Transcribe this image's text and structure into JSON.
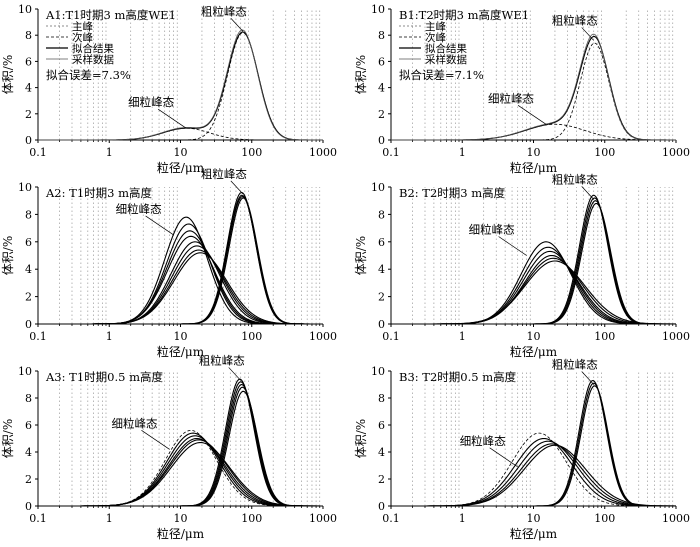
{
  "figure": {
    "x_ticks": [
      "0.1",
      "1",
      "10",
      "100",
      "1000"
    ],
    "y_ticks": [
      "0",
      "2",
      "4",
      "6",
      "8",
      "10"
    ]
  },
  "chart_data": [
    {
      "id": "A1",
      "type": "line",
      "x_scale": "log",
      "title": "A1:T1时期3 m高度WE1",
      "xlabel": "粒径/μm",
      "ylabel": "体积/%",
      "xlim": [
        0.1,
        1000
      ],
      "ylim": [
        0,
        10
      ],
      "grid": "vertical dotted",
      "legend": [
        "主峰",
        "次峰",
        "拟合结果",
        "采样数据"
      ],
      "legend_position": "top-left",
      "fit_error": "拟合误差=7.3%",
      "annotations": [
        {
          "text": "粗粒峰态",
          "x": 75,
          "y": 8.3
        },
        {
          "text": "细粒峰态",
          "x": 12,
          "y": 0.9
        }
      ],
      "series": [
        {
          "name": "主峰",
          "style": "dashed",
          "components": [
            {
              "mu": 75,
              "sigma": 0.215,
              "amp": 8.2
            }
          ]
        },
        {
          "name": "次峰",
          "style": "dashed",
          "components": [
            {
              "mu": 12,
              "sigma": 0.33,
              "amp": 0.9
            }
          ]
        },
        {
          "name": "拟合结果",
          "style": "solid",
          "components": [
            {
              "mu": 75,
              "sigma": 0.215,
              "amp": 8.2
            },
            {
              "mu": 12,
              "sigma": 0.33,
              "amp": 0.9
            }
          ]
        },
        {
          "name": "采样数据",
          "style": "thin",
          "components": [
            {
              "mu": 74,
              "sigma": 0.213,
              "amp": 8.35
            },
            {
              "mu": 12,
              "sigma": 0.33,
              "amp": 0.95
            }
          ]
        }
      ]
    },
    {
      "id": "B1",
      "type": "line",
      "x_scale": "log",
      "title": "B1:T2时期3 m高度WE1",
      "xlabel": "粒径/μm",
      "ylabel": "体积/%",
      "xlim": [
        0.1,
        1000
      ],
      "ylim": [
        0,
        10
      ],
      "grid": "vertical dotted",
      "legend": [
        "主峰",
        "次峰",
        "拟合结果",
        "采样数据"
      ],
      "legend_position": "top-left",
      "fit_error": "拟合误差=7.1%",
      "annotations": [
        {
          "text": "粗粒峰态",
          "x": 70,
          "y": 7.6
        },
        {
          "text": "细粒峰态",
          "x": 15,
          "y": 1.2
        }
      ],
      "series": [
        {
          "name": "主峰",
          "style": "dashed",
          "components": [
            {
              "mu": 72,
              "sigma": 0.2,
              "amp": 7.4
            }
          ]
        },
        {
          "name": "次峰",
          "style": "dashed",
          "components": [
            {
              "mu": 20,
              "sigma": 0.42,
              "amp": 1.2
            }
          ]
        },
        {
          "name": "拟合结果",
          "style": "solid",
          "components": [
            {
              "mu": 72,
              "sigma": 0.2,
              "amp": 7.4
            },
            {
              "mu": 20,
              "sigma": 0.42,
              "amp": 1.2
            }
          ]
        },
        {
          "name": "采样数据",
          "style": "thin",
          "components": [
            {
              "mu": 71,
              "sigma": 0.198,
              "amp": 7.55
            },
            {
              "mu": 20,
              "sigma": 0.42,
              "amp": 1.25
            }
          ]
        }
      ]
    },
    {
      "id": "A2",
      "type": "line",
      "x_scale": "log",
      "title": "A2: T1时期3 m高度",
      "xlabel": "粒径/μm",
      "ylabel": "体积/%",
      "xlim": [
        0.1,
        1000
      ],
      "ylim": [
        0,
        10
      ],
      "grid": "vertical dotted",
      "annotations": [
        {
          "text": "粗粒峰态",
          "x": 75,
          "y": 9.5
        },
        {
          "text": "细粒峰态",
          "x": 8,
          "y": 6.5
        }
      ],
      "series": [
        {
          "style": "solid",
          "components": [
            {
              "mu": 72,
              "sigma": 0.2,
              "amp": 9.6
            }
          ]
        },
        {
          "style": "solid",
          "components": [
            {
              "mu": 73,
              "sigma": 0.2,
              "amp": 9.4
            }
          ]
        },
        {
          "style": "solid",
          "components": [
            {
              "mu": 74,
              "sigma": 0.2,
              "amp": 9.3
            }
          ]
        },
        {
          "style": "solid",
          "components": [
            {
              "mu": 76,
              "sigma": 0.2,
              "amp": 9.2
            }
          ]
        },
        {
          "style": "solid",
          "components": [
            {
              "mu": 12,
              "sigma": 0.3,
              "amp": 7.8
            }
          ]
        },
        {
          "style": "solid",
          "components": [
            {
              "mu": 13,
              "sigma": 0.31,
              "amp": 7.3
            }
          ]
        },
        {
          "style": "solid",
          "components": [
            {
              "mu": 13.5,
              "sigma": 0.32,
              "amp": 6.8
            }
          ]
        },
        {
          "style": "solid",
          "components": [
            {
              "mu": 14,
              "sigma": 0.33,
              "amp": 6.4
            }
          ]
        },
        {
          "style": "solid",
          "components": [
            {
              "mu": 16,
              "sigma": 0.34,
              "amp": 6.0
            }
          ]
        },
        {
          "style": "solid",
          "components": [
            {
              "mu": 17,
              "sigma": 0.35,
              "amp": 5.7
            }
          ]
        },
        {
          "style": "solid",
          "components": [
            {
              "mu": 18,
              "sigma": 0.36,
              "amp": 5.4
            }
          ]
        },
        {
          "style": "solid",
          "components": [
            {
              "mu": 19,
              "sigma": 0.37,
              "amp": 5.2
            }
          ]
        }
      ]
    },
    {
      "id": "B2",
      "type": "line",
      "x_scale": "log",
      "title": "B2: T2时期3 m高度",
      "xlabel": "粒径/μm",
      "ylabel": "体积/%",
      "xlim": [
        0.1,
        1000
      ],
      "ylim": [
        0,
        10
      ],
      "grid": "vertical dotted",
      "annotations": [
        {
          "text": "粗粒峰态",
          "x": 70,
          "y": 9.1
        },
        {
          "text": "细粒峰态",
          "x": 8,
          "y": 5.0
        }
      ],
      "series": [
        {
          "style": "solid",
          "components": [
            {
              "mu": 70,
              "sigma": 0.2,
              "amp": 9.4
            }
          ]
        },
        {
          "style": "solid",
          "components": [
            {
              "mu": 72,
              "sigma": 0.2,
              "amp": 9.2
            }
          ]
        },
        {
          "style": "solid",
          "components": [
            {
              "mu": 74,
              "sigma": 0.2,
              "amp": 9.0
            }
          ]
        },
        {
          "style": "solid",
          "components": [
            {
              "mu": 76,
              "sigma": 0.2,
              "amp": 8.8
            }
          ]
        },
        {
          "style": "solid",
          "components": [
            {
              "mu": 15,
              "sigma": 0.35,
              "amp": 6.0
            }
          ]
        },
        {
          "style": "solid",
          "components": [
            {
              "mu": 16,
              "sigma": 0.36,
              "amp": 5.6
            }
          ]
        },
        {
          "style": "solid",
          "components": [
            {
              "mu": 17,
              "sigma": 0.37,
              "amp": 5.3
            }
          ]
        },
        {
          "style": "solid",
          "components": [
            {
              "mu": 18,
              "sigma": 0.38,
              "amp": 5.0
            }
          ]
        },
        {
          "style": "solid",
          "components": [
            {
              "mu": 19,
              "sigma": 0.4,
              "amp": 4.8
            }
          ]
        },
        {
          "style": "solid",
          "components": [
            {
              "mu": 20,
              "sigma": 0.42,
              "amp": 4.6
            }
          ]
        }
      ]
    },
    {
      "id": "A3",
      "type": "line",
      "x_scale": "log",
      "title": "A3: T1时期0.5 m高度",
      "xlabel": "粒径/μm",
      "ylabel": "体积/%",
      "xlim": [
        0.1,
        1000
      ],
      "ylim": [
        0,
        10
      ],
      "grid": "vertical dotted",
      "annotations": [
        {
          "text": "粗粒峰态",
          "x": 70,
          "y": 9.3
        },
        {
          "text": "细粒峰态",
          "x": 7,
          "y": 4.2
        }
      ],
      "series": [
        {
          "style": "solid",
          "components": [
            {
              "mu": 68,
              "sigma": 0.2,
              "amp": 9.4
            }
          ]
        },
        {
          "style": "solid",
          "components": [
            {
              "mu": 70,
              "sigma": 0.2,
              "amp": 9.2
            }
          ]
        },
        {
          "style": "solid",
          "components": [
            {
              "mu": 72,
              "sigma": 0.2,
              "amp": 9.0
            }
          ]
        },
        {
          "style": "solid",
          "components": [
            {
              "mu": 74,
              "sigma": 0.2,
              "amp": 8.8
            }
          ]
        },
        {
          "style": "solid",
          "components": [
            {
              "mu": 76,
              "sigma": 0.2,
              "amp": 8.5
            }
          ]
        },
        {
          "style": "dashed",
          "components": [
            {
              "mu": 14,
              "sigma": 0.36,
              "amp": 5.6
            }
          ]
        },
        {
          "style": "solid",
          "components": [
            {
              "mu": 15,
              "sigma": 0.37,
              "amp": 5.4
            }
          ]
        },
        {
          "style": "solid",
          "components": [
            {
              "mu": 16,
              "sigma": 0.38,
              "amp": 5.2
            }
          ]
        },
        {
          "style": "solid",
          "components": [
            {
              "mu": 17,
              "sigma": 0.39,
              "amp": 5.0
            }
          ]
        },
        {
          "style": "solid",
          "components": [
            {
              "mu": 18,
              "sigma": 0.4,
              "amp": 4.9
            }
          ]
        },
        {
          "style": "solid",
          "components": [
            {
              "mu": 19,
              "sigma": 0.41,
              "amp": 4.7
            }
          ]
        }
      ]
    },
    {
      "id": "B3",
      "type": "line",
      "x_scale": "log",
      "title": "B3: T2时期0.5 m高度",
      "xlabel": "粒径/μm",
      "ylabel": "体积/%",
      "xlim": [
        0.1,
        1000
      ],
      "ylim": [
        0,
        10
      ],
      "grid": "vertical dotted",
      "annotations": [
        {
          "text": "粗粒峰态",
          "x": 70,
          "y": 9.0
        },
        {
          "text": "细粒峰态",
          "x": 6,
          "y": 2.9
        }
      ],
      "series": [
        {
          "style": "solid",
          "components": [
            {
              "mu": 68,
              "sigma": 0.19,
              "amp": 9.3
            }
          ]
        },
        {
          "style": "solid",
          "components": [
            {
              "mu": 70,
              "sigma": 0.19,
              "amp": 9.1
            }
          ]
        },
        {
          "style": "solid",
          "components": [
            {
              "mu": 72,
              "sigma": 0.19,
              "amp": 8.9
            }
          ]
        },
        {
          "style": "dashed",
          "components": [
            {
              "mu": 12,
              "sigma": 0.38,
              "amp": 5.4
            }
          ]
        },
        {
          "style": "solid",
          "components": [
            {
              "mu": 14,
              "sigma": 0.4,
              "amp": 5.0
            }
          ]
        },
        {
          "style": "solid",
          "components": [
            {
              "mu": 16,
              "sigma": 0.41,
              "amp": 4.8
            }
          ]
        },
        {
          "style": "solid",
          "components": [
            {
              "mu": 18,
              "sigma": 0.42,
              "amp": 4.6
            }
          ]
        },
        {
          "style": "solid",
          "components": [
            {
              "mu": 20,
              "sigma": 0.43,
              "amp": 4.5
            }
          ]
        }
      ]
    }
  ]
}
